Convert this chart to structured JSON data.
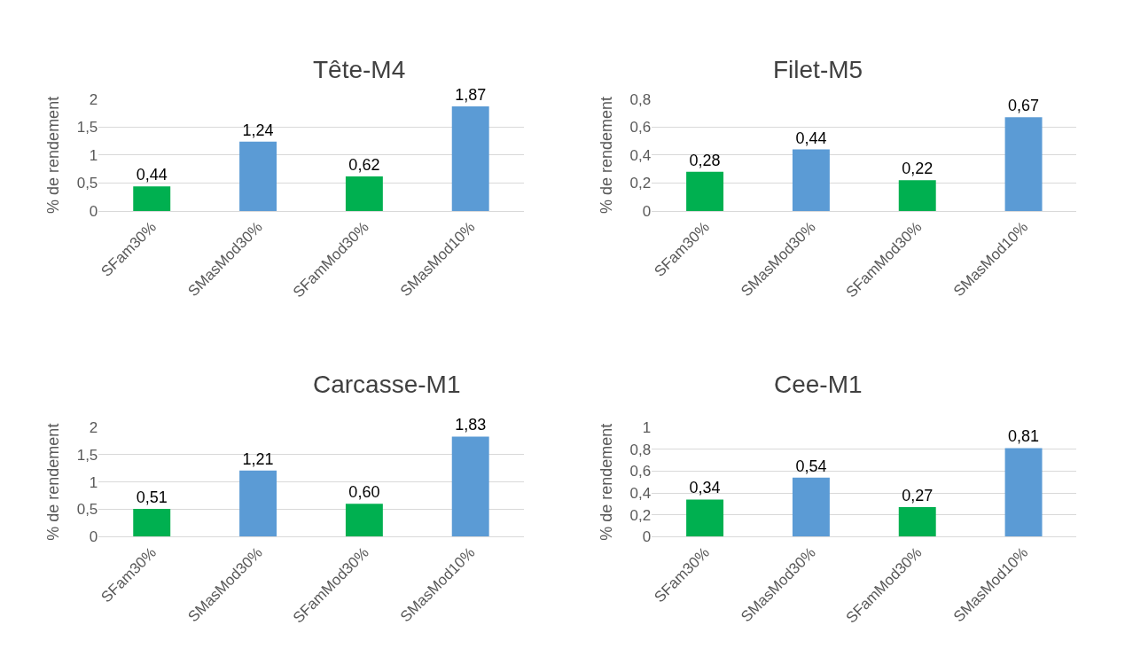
{
  "chart_data": [
    {
      "type": "bar",
      "title": "Tête-M4",
      "ylabel": "% de rendement",
      "categories": [
        "SFam30%",
        "SMasMod30%",
        "SFamMod30%",
        "SMasMod10%"
      ],
      "values": [
        0.44,
        1.24,
        0.62,
        1.87
      ],
      "value_labels": [
        "0,44",
        "1,24",
        "0,62",
        "1,87"
      ],
      "colors": [
        "#00b050",
        "#5b9bd5",
        "#00b050",
        "#5b9bd5"
      ],
      "ylim": [
        0,
        2
      ],
      "yticks": [
        0,
        {
          "value": 0.5,
          "label": "0,5"
        },
        1,
        {
          "value": 1.5,
          "label": "1,5"
        },
        2
      ],
      "grid": "y"
    },
    {
      "type": "bar",
      "title": "Filet-M5",
      "ylabel": "% de rendement",
      "categories": [
        "SFam30%",
        "SMasMod30%",
        "SFamMod30%",
        "SMasMod10%"
      ],
      "values": [
        0.28,
        0.44,
        0.22,
        0.67
      ],
      "value_labels": [
        "0,28",
        "0,44",
        "0,22",
        "0,67"
      ],
      "colors": [
        "#00b050",
        "#5b9bd5",
        "#00b050",
        "#5b9bd5"
      ],
      "ylim": [
        0,
        0.8
      ],
      "yticks": [
        0,
        {
          "value": 0.2,
          "label": "0,2"
        },
        {
          "value": 0.4,
          "label": "0,4"
        },
        {
          "value": 0.6,
          "label": "0,6"
        },
        {
          "value": 0.8,
          "label": "0,8"
        }
      ],
      "grid": "y"
    },
    {
      "type": "bar",
      "title": "Carcasse-M1",
      "ylabel": "% de rendement",
      "categories": [
        "SFam30%",
        "SMasMod30%",
        "SFamMod30%",
        "SMasMod10%"
      ],
      "values": [
        0.51,
        1.21,
        0.6,
        1.83
      ],
      "value_labels": [
        "0,51",
        "1,21",
        "0,60",
        "1,83"
      ],
      "colors": [
        "#00b050",
        "#5b9bd5",
        "#00b050",
        "#5b9bd5"
      ],
      "ylim": [
        0,
        2
      ],
      "yticks": [
        0,
        {
          "value": 0.5,
          "label": "0,5"
        },
        1,
        {
          "value": 1.5,
          "label": "1,5"
        },
        2
      ],
      "grid": "y"
    },
    {
      "type": "bar",
      "title": "Cee-M1",
      "ylabel": "% de rendement",
      "categories": [
        "SFam30%",
        "SMasMod30%",
        "SFamMod30%",
        "SMasMod10%"
      ],
      "values": [
        0.34,
        0.54,
        0.27,
        0.81
      ],
      "value_labels": [
        "0,34",
        "0,54",
        "0,27",
        "0,81"
      ],
      "colors": [
        "#00b050",
        "#5b9bd5",
        "#00b050",
        "#5b9bd5"
      ],
      "ylim": [
        0,
        1
      ],
      "yticks": [
        0,
        {
          "value": 0.2,
          "label": "0,2"
        },
        {
          "value": 0.4,
          "label": "0,4"
        },
        {
          "value": 0.6,
          "label": "0,6"
        },
        {
          "value": 0.8,
          "label": "0,8"
        },
        1
      ],
      "grid": "y"
    }
  ]
}
